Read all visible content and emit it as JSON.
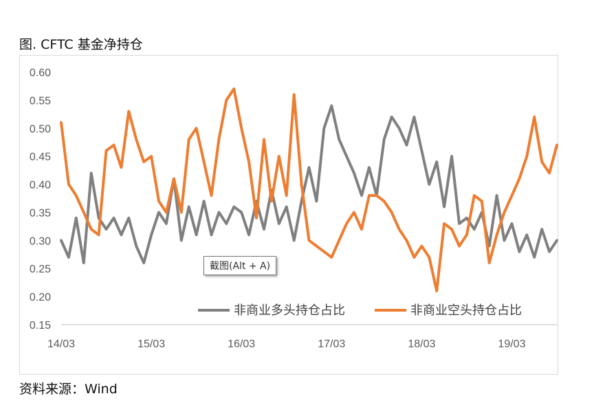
{
  "title": "图. CFTC 基金净持仓",
  "source": "资料来源：Wind",
  "tooltip": "截图(Alt + A)",
  "colors": {
    "long": "#808080",
    "short": "#ED7D31",
    "axis": "#595959",
    "frame": "#d9d9d9"
  },
  "chart_data": {
    "type": "line",
    "grid": false,
    "legend_position": "bottom-right-inside",
    "ylim": [
      0.15,
      0.6
    ],
    "yticks": [
      "0.15",
      "0.20",
      "0.25",
      "0.30",
      "0.35",
      "0.40",
      "0.45",
      "0.50",
      "0.55",
      "0.60"
    ],
    "xticks": [
      "14/03",
      "15/03",
      "16/03",
      "17/03",
      "18/03",
      "19/03"
    ],
    "xrange": [
      "14/03",
      "19/09"
    ],
    "series": [
      {
        "name": "非商业多头持仓占比",
        "color": "#808080",
        "x": [
          "14/03",
          "14/04",
          "14/05",
          "14/06",
          "14/07",
          "14/08",
          "14/09",
          "14/10",
          "14/11",
          "14/12",
          "15/01",
          "15/02",
          "15/03",
          "15/04",
          "15/05",
          "15/06",
          "15/07",
          "15/08",
          "15/09",
          "15/10",
          "15/11",
          "15/12",
          "16/01",
          "16/02",
          "16/03",
          "16/04",
          "16/05",
          "16/06",
          "16/07",
          "16/08",
          "16/09",
          "16/10",
          "16/11",
          "16/12",
          "17/01",
          "17/02",
          "17/03",
          "17/04",
          "17/05",
          "17/06",
          "17/07",
          "17/08",
          "17/09",
          "17/10",
          "17/11",
          "17/12",
          "18/01",
          "18/02",
          "18/03",
          "18/04",
          "18/05",
          "18/06",
          "18/07",
          "18/08",
          "18/09",
          "18/10",
          "18/11",
          "18/12",
          "19/01",
          "19/02",
          "19/03",
          "19/04",
          "19/05",
          "19/06",
          "19/07",
          "19/08",
          "19/09"
        ],
        "values": [
          0.3,
          0.27,
          0.34,
          0.26,
          0.42,
          0.34,
          0.32,
          0.34,
          0.31,
          0.34,
          0.29,
          0.26,
          0.31,
          0.35,
          0.33,
          0.41,
          0.3,
          0.36,
          0.31,
          0.37,
          0.31,
          0.35,
          0.33,
          0.36,
          0.35,
          0.31,
          0.37,
          0.32,
          0.39,
          0.33,
          0.36,
          0.3,
          0.37,
          0.43,
          0.37,
          0.5,
          0.54,
          0.48,
          0.45,
          0.42,
          0.38,
          0.43,
          0.38,
          0.48,
          0.52,
          0.5,
          0.47,
          0.52,
          0.46,
          0.4,
          0.44,
          0.36,
          0.45,
          0.33,
          0.34,
          0.32,
          0.35,
          0.29,
          0.38,
          0.3,
          0.33,
          0.28,
          0.31,
          0.27,
          0.32,
          0.28,
          0.3
        ]
      },
      {
        "name": "非商业空头持仓占比",
        "color": "#ED7D31",
        "x": [
          "14/03",
          "14/04",
          "14/05",
          "14/06",
          "14/07",
          "14/08",
          "14/09",
          "14/10",
          "14/11",
          "14/12",
          "15/01",
          "15/02",
          "15/03",
          "15/04",
          "15/05",
          "15/06",
          "15/07",
          "15/08",
          "15/09",
          "15/10",
          "15/11",
          "15/12",
          "16/01",
          "16/02",
          "16/03",
          "16/04",
          "16/05",
          "16/06",
          "16/07",
          "16/08",
          "16/09",
          "16/10",
          "16/11",
          "16/12",
          "17/01",
          "17/02",
          "17/03",
          "17/04",
          "17/05",
          "17/06",
          "17/07",
          "17/08",
          "17/09",
          "17/10",
          "17/11",
          "17/12",
          "18/01",
          "18/02",
          "18/03",
          "18/04",
          "18/05",
          "18/06",
          "18/07",
          "18/08",
          "18/09",
          "18/10",
          "18/11",
          "18/12",
          "19/01",
          "19/02",
          "19/03",
          "19/04",
          "19/05",
          "19/06",
          "19/07",
          "19/08",
          "19/09"
        ],
        "values": [
          0.51,
          0.4,
          0.38,
          0.35,
          0.32,
          0.31,
          0.46,
          0.47,
          0.43,
          0.53,
          0.48,
          0.44,
          0.45,
          0.37,
          0.35,
          0.41,
          0.35,
          0.48,
          0.5,
          0.44,
          0.38,
          0.48,
          0.55,
          0.57,
          0.5,
          0.44,
          0.34,
          0.48,
          0.37,
          0.45,
          0.38,
          0.56,
          0.4,
          0.3,
          0.29,
          0.28,
          0.27,
          0.3,
          0.33,
          0.35,
          0.32,
          0.38,
          0.38,
          0.37,
          0.35,
          0.32,
          0.3,
          0.27,
          0.29,
          0.27,
          0.21,
          0.33,
          0.32,
          0.29,
          0.31,
          0.38,
          0.37,
          0.26,
          0.31,
          0.35,
          0.38,
          0.41,
          0.45,
          0.52,
          0.44,
          0.42,
          0.47
        ]
      }
    ]
  }
}
